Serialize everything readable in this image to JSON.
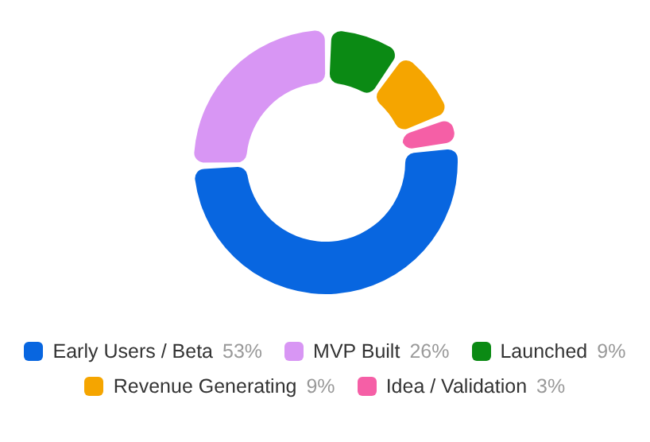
{
  "chart_data": {
    "type": "donut",
    "categories": [
      "Early Users / Beta",
      "MVP Built",
      "Launched",
      "Revenue Generating",
      "Idea / Validation"
    ],
    "values": [
      53,
      26,
      9,
      9,
      3
    ],
    "value_labels": [
      "53%",
      "26%",
      "9%",
      "9%",
      "3%"
    ],
    "colors": [
      "#0866e0",
      "#d896f4",
      "#0b8a14",
      "#f5a500",
      "#f55fa6"
    ],
    "legend": "bottom"
  }
}
